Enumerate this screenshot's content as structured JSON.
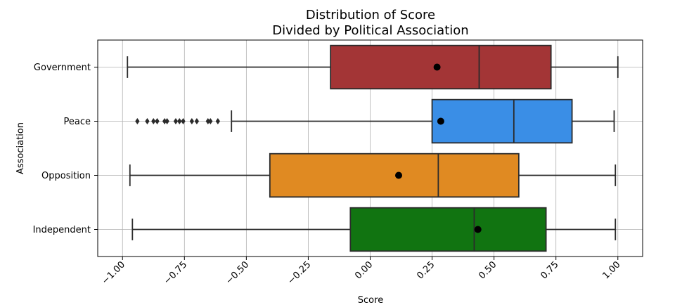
{
  "chart_data": {
    "type": "box",
    "title": "Distribution of Score",
    "subtitle": "Divided by Political Association",
    "xlabel": "Score",
    "ylabel": "Association",
    "xlim": [
      -1.1,
      1.1
    ],
    "x_ticks": [
      -1.0,
      -0.75,
      -0.5,
      -0.25,
      0.0,
      0.25,
      0.5,
      0.75,
      1.0
    ],
    "x_tick_labels": [
      "−1.00",
      "−0.75",
      "−0.50",
      "−0.25",
      "0.00",
      "0.25",
      "0.50",
      "0.75",
      "1.00"
    ],
    "grid": true,
    "categories": [
      "Government",
      "Peace",
      "Opposition",
      "Independent"
    ],
    "series": [
      {
        "name": "Government",
        "color": "#a33536",
        "whisker_low": -0.98,
        "q1": -0.16,
        "median": 0.44,
        "q3": 0.73,
        "whisker_high": 1.0,
        "mean": 0.27,
        "outliers": []
      },
      {
        "name": "Peace",
        "color": "#3a8ee6",
        "whisker_low": -0.56,
        "q1": 0.25,
        "median": 0.58,
        "q3": 0.815,
        "whisker_high": 0.985,
        "mean": 0.285,
        "outliers": [
          -0.94,
          -0.9,
          -0.875,
          -0.86,
          -0.83,
          -0.82,
          -0.785,
          -0.77,
          -0.755,
          -0.72,
          -0.7,
          -0.655,
          -0.645,
          -0.615
        ]
      },
      {
        "name": "Opposition",
        "color": "#e08a22",
        "whisker_low": -0.97,
        "q1": -0.405,
        "median": 0.275,
        "q3": 0.6,
        "whisker_high": 0.99,
        "mean": 0.115,
        "outliers": []
      },
      {
        "name": "Independent",
        "color": "#117411",
        "whisker_low": -0.96,
        "q1": -0.08,
        "median": 0.42,
        "q3": 0.71,
        "whisker_high": 0.99,
        "mean": 0.435,
        "outliers": []
      }
    ]
  }
}
